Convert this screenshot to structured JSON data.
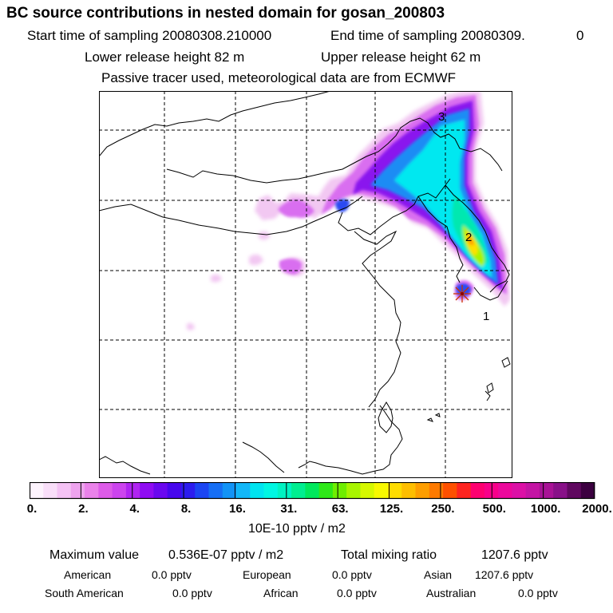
{
  "header": {
    "title": "BC  source contributions in nested domain for gosan_200803",
    "start_label": "Start time of sampling 20080308.210000",
    "end_label": "End time of sampling 20080309.",
    "end_suffix": "0",
    "lower_release": "Lower release height   82 m",
    "upper_release": "Upper release height   62 m",
    "tracer_note": "Passive tracer used, meteorological data are from ECMWF"
  },
  "map": {
    "markers": [
      {
        "label": "1"
      },
      {
        "label": "2"
      },
      {
        "label": "3"
      }
    ]
  },
  "colorbar": {
    "ticks": [
      "0.",
      "2.",
      "4.",
      "8.",
      "16.",
      "31.",
      "63.",
      "125.",
      "250.",
      "500.",
      "1000.",
      "2000."
    ],
    "unit": "10E-10 pptv / m2",
    "colors": [
      "#fdf3fd",
      "#f9def9",
      "#f4c2f4",
      "#eea3ee",
      "#ea82ea",
      "#dd5be8",
      "#cc44ee",
      "#b024f2",
      "#8f0cf2",
      "#6a08ef",
      "#4707ed",
      "#2c1cef",
      "#1b45f2",
      "#166ef4",
      "#1293f6",
      "#12b7f8",
      "#00e4f0",
      "#00f6e2",
      "#00f2c2",
      "#00ee90",
      "#00e85c",
      "#2ee818",
      "#6eee00",
      "#a8f400",
      "#d6f800",
      "#f8f800",
      "#fedc00",
      "#febe00",
      "#fe9e00",
      "#fe7a00",
      "#fe5000",
      "#fe2420",
      "#fe0070",
      "#f8008a",
      "#ec089c",
      "#dc10a6",
      "#c414a4",
      "#a81296",
      "#881088",
      "#600860",
      "#3c0040"
    ]
  },
  "stats": {
    "max_label": "Maximum value",
    "max_value": "0.536E-07 pptv / m2",
    "total_label": "Total mixing ratio",
    "total_value": "1207.6 pptv",
    "regions": [
      {
        "name": "American",
        "value": "0.0 pptv"
      },
      {
        "name": "European",
        "value": "0.0 pptv"
      },
      {
        "name": "Asian",
        "value": "1207.6 pptv"
      },
      {
        "name": "South American",
        "value": "0.0 pptv"
      },
      {
        "name": "African",
        "value": "0.0 pptv"
      },
      {
        "name": "Australian",
        "value": "0.0 pptv"
      }
    ]
  }
}
